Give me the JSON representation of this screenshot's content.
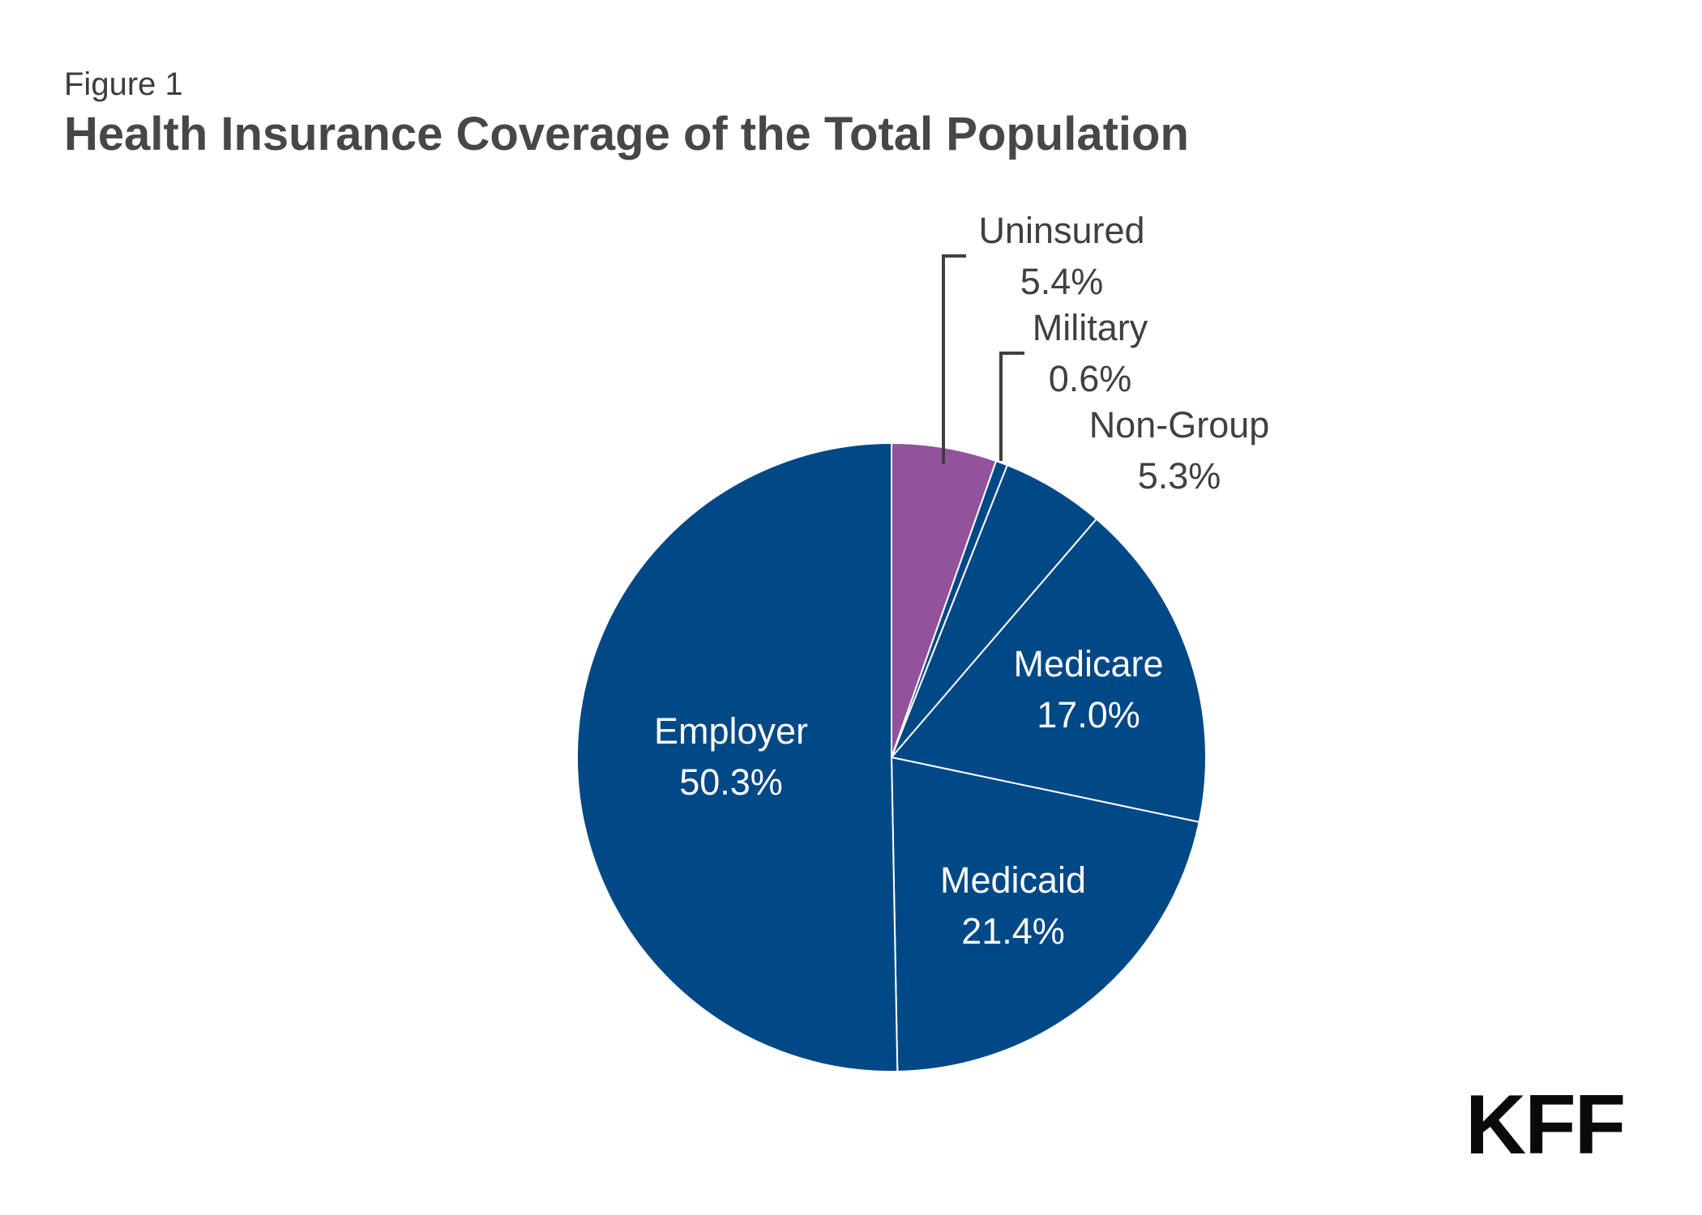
{
  "header": {
    "figure_label": "Figure 1"
  },
  "brand": {
    "logo_text": "KFF"
  },
  "colors": {
    "navy": "#004886",
    "purple": "#92529c",
    "leader_line": "#3f3f3f",
    "outside_label": "#404040",
    "inside_label": "#ffffff"
  },
  "chart_data": {
    "type": "pie",
    "title": "Health Insurance Coverage of the Total Population",
    "start_angle": "12 o'clock",
    "direction": "clockwise",
    "slices": [
      {
        "label": "Uninsured",
        "value": 5.4,
        "display": "5.4%",
        "color": "#92529c",
        "label_position": "outside"
      },
      {
        "label": "Military",
        "value": 0.6,
        "display": "0.6%",
        "color": "#004886",
        "label_position": "outside"
      },
      {
        "label": "Non-Group",
        "value": 5.3,
        "display": "5.3%",
        "color": "#004886",
        "label_position": "outside"
      },
      {
        "label": "Medicare",
        "value": 17.0,
        "display": "17.0%",
        "color": "#004886",
        "label_position": "inside"
      },
      {
        "label": "Medicaid",
        "value": 21.4,
        "display": "21.4%",
        "color": "#004886",
        "label_position": "inside"
      },
      {
        "label": "Employer",
        "value": 50.3,
        "display": "50.3%",
        "color": "#004886",
        "label_position": "inside"
      }
    ]
  }
}
